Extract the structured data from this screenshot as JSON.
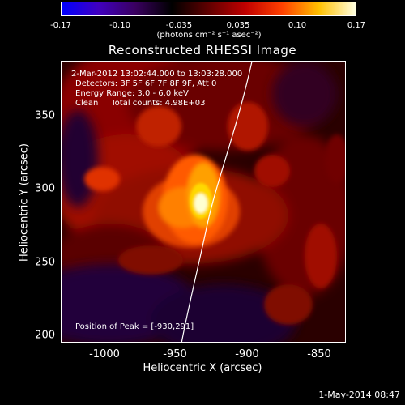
{
  "colorbar": {
    "tick_labels": [
      "-0.17",
      "-0.10",
      "-0.035",
      "0.035",
      "0.10",
      "0.17"
    ],
    "unit_label": "(photons cm⁻² s⁻¹ asec⁻²)",
    "colors": [
      "#0000ff",
      "#4000c0",
      "#3a0060",
      "#000000",
      "#600000",
      "#c00000",
      "#ff4000",
      "#ffc000",
      "#ffffe0"
    ]
  },
  "title": "Reconstructed RHESSI Image",
  "info": {
    "time_range": "2-Mar-2012 13:02:44.000 to 13:03:28.000",
    "detectors": "Detectors: 3F 5F 6F 7F 8F 9F, Att 0",
    "energy": "Energy Range: 3.0 - 6.0 keV",
    "clean": "Clean     Total counts: 4.98E+03",
    "peak": "Position of Peak = [-930,291]"
  },
  "axes": {
    "xlabel": "Heliocentric X (arcsec)",
    "ylabel": "Heliocentric Y (arcsec)",
    "x_ticks": [
      "-1000",
      "-950",
      "-900",
      "-850"
    ],
    "y_ticks": [
      "350",
      "300",
      "250",
      "200"
    ],
    "xlim": [
      -1030,
      -836
    ],
    "ylim": [
      195,
      386
    ]
  },
  "image": {
    "peak_position": [
      -930,
      291
    ],
    "limb_color": "#ffffff"
  },
  "timestamp": "1-May-2014 08:47"
}
